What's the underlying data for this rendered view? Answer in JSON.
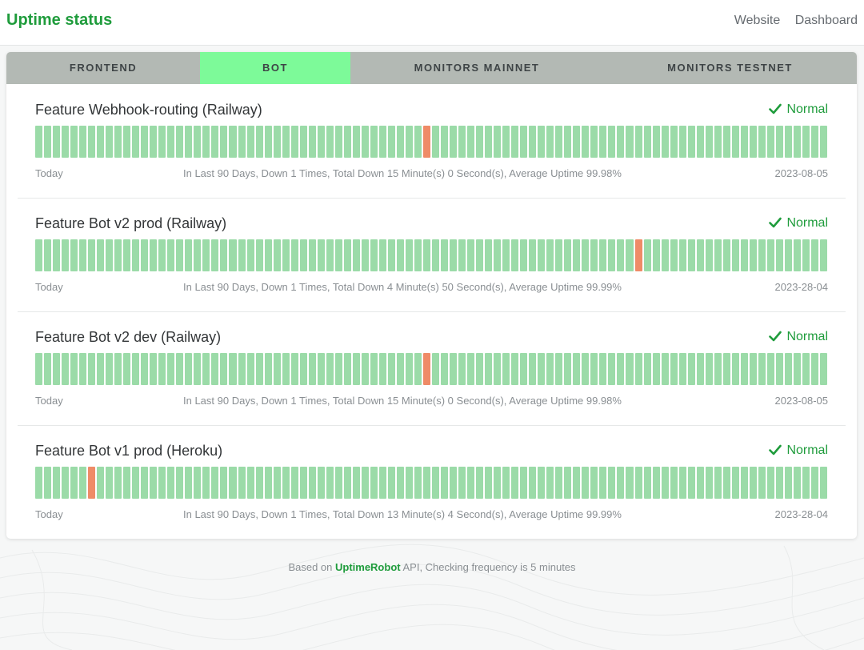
{
  "header": {
    "title": "Uptime status",
    "links": [
      "Website",
      "Dashboard"
    ]
  },
  "tabs": [
    {
      "label": "FRONTEND",
      "active": false
    },
    {
      "label": "BOT",
      "active": true
    },
    {
      "label": "MONITORS MAINNET",
      "active": false
    },
    {
      "label": "MONITORS TESTNET",
      "active": false
    }
  ],
  "colors": {
    "brand": "#1f9c3c",
    "bar_up": "#9bdba8",
    "bar_down": "#ef8b67",
    "tab_active": "#7dfa99",
    "tab_bar": "#b3b9b4"
  },
  "monitors": [
    {
      "name": "Feature Webhook-routing (Railway)",
      "status": "Normal",
      "status_icon": "check-icon",
      "today_label": "Today",
      "summary": "In Last 90 Days, Down 1 Times,  Total Down 15 Minute(s) 0 Second(s),  Average Uptime 99.98%",
      "date": "2023-08-05",
      "days": 90,
      "down_days": [
        44
      ]
    },
    {
      "name": "Feature Bot v2 prod (Railway)",
      "status": "Normal",
      "status_icon": "check-icon",
      "today_label": "Today",
      "summary": "In Last 90 Days, Down 1 Times,  Total Down 4 Minute(s) 50 Second(s),  Average Uptime 99.99%",
      "date": "2023-28-04",
      "days": 90,
      "down_days": [
        68
      ]
    },
    {
      "name": "Feature Bot v2 dev (Railway)",
      "status": "Normal",
      "status_icon": "check-icon",
      "today_label": "Today",
      "summary": "In Last 90 Days, Down 1 Times,  Total Down 15 Minute(s) 0 Second(s),  Average Uptime 99.98%",
      "date": "2023-08-05",
      "days": 90,
      "down_days": [
        44
      ]
    },
    {
      "name": "Feature Bot v1 prod (Heroku)",
      "status": "Normal",
      "status_icon": "check-icon",
      "today_label": "Today",
      "summary": "In Last 90 Days, Down 1 Times,  Total Down 13 Minute(s) 4 Second(s),  Average Uptime 99.99%",
      "date": "2023-28-04",
      "days": 90,
      "down_days": [
        6
      ]
    }
  ],
  "footer": {
    "prefix": "Based on ",
    "brand": "UptimeRobot",
    "suffix": " API,  Checking frequency is 5 minutes"
  }
}
